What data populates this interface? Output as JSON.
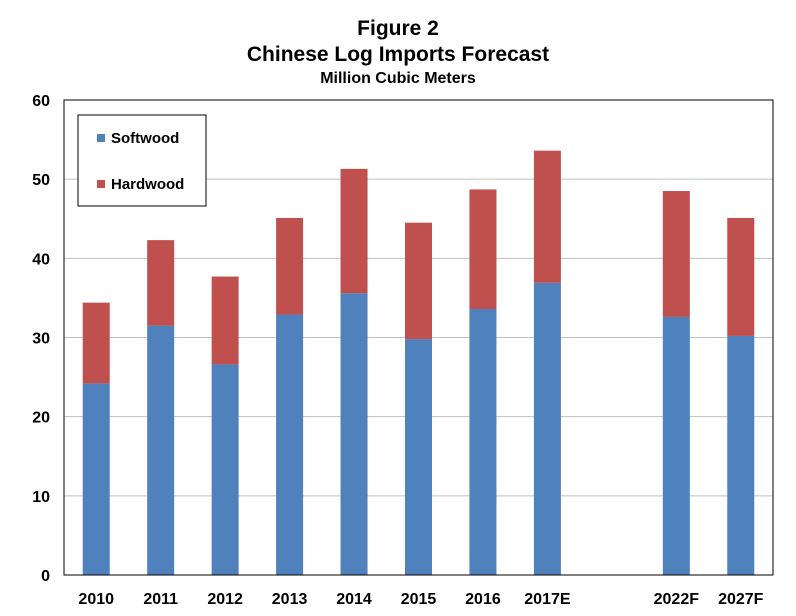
{
  "title": "Figure 2",
  "subtitle": "Chinese Log Imports Forecast",
  "units": "Million Cubic Meters",
  "colors": {
    "softwood": "#4F81BD",
    "hardwood": "#C0504D",
    "grid": "#C0C0C0",
    "frame": "#000000"
  },
  "chart_data": {
    "type": "bar",
    "stacked": true,
    "title": "Figure 2",
    "subtitle": "Chinese Log Imports Forecast",
    "ylabel": "Million Cubic Meters",
    "xlabel": "",
    "categories": [
      "2010",
      "2011",
      "2012",
      "2013",
      "2014",
      "2015",
      "2016",
      "2017E",
      "",
      "2022F",
      "2027F"
    ],
    "series": [
      {
        "name": "Softwood",
        "values": [
          24.2,
          31.5,
          26.6,
          32.9,
          35.6,
          29.8,
          33.6,
          36.9,
          null,
          32.6,
          30.2
        ]
      },
      {
        "name": "Hardwood",
        "values": [
          10.2,
          10.8,
          11.1,
          12.2,
          15.7,
          14.7,
          15.1,
          16.7,
          null,
          15.9,
          14.9
        ]
      }
    ],
    "ylim": [
      0,
      60
    ],
    "yticks": [
      0,
      10,
      20,
      30,
      40,
      50,
      60
    ],
    "grid": true,
    "legend": "top-left"
  }
}
